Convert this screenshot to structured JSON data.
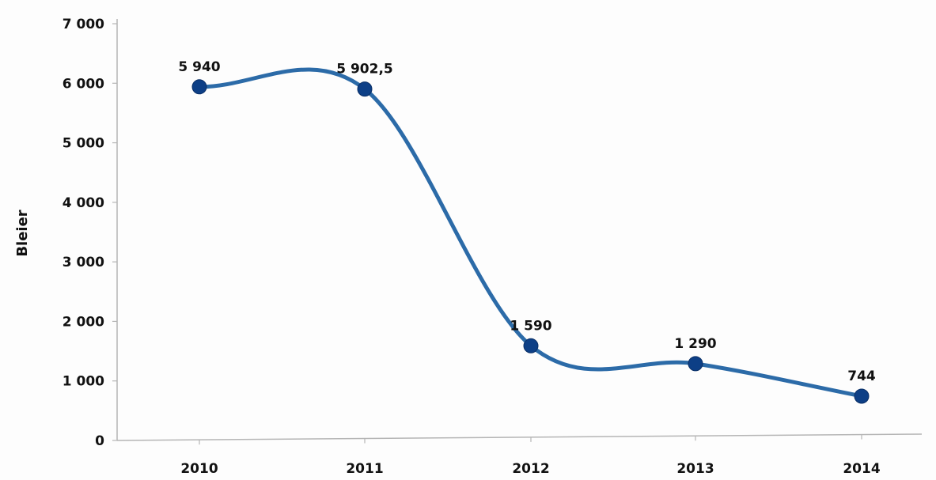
{
  "chart_data": {
    "type": "line",
    "title": "",
    "xlabel": "",
    "ylabel": "Bleier",
    "categories": [
      "2010",
      "2011",
      "2012",
      "2013",
      "2014"
    ],
    "series": [
      {
        "values": [
          5940,
          5902.5,
          1590,
          1290,
          744
        ],
        "data_labels": [
          "5 940",
          "5 902,5",
          "1 590",
          "1 290",
          "744"
        ],
        "color": "#2c6ba8",
        "marker_color": "#0d3f86",
        "smooth": true
      }
    ],
    "ylim": [
      0,
      7000
    ],
    "yticks": [
      0,
      1000,
      2000,
      3000,
      4000,
      5000,
      6000,
      7000
    ],
    "ytick_labels": [
      "0",
      "1 000",
      "2 000",
      "3 000",
      "4 000",
      "5 000",
      "6 000",
      "7 000"
    ],
    "grid": false,
    "legend": "none"
  }
}
